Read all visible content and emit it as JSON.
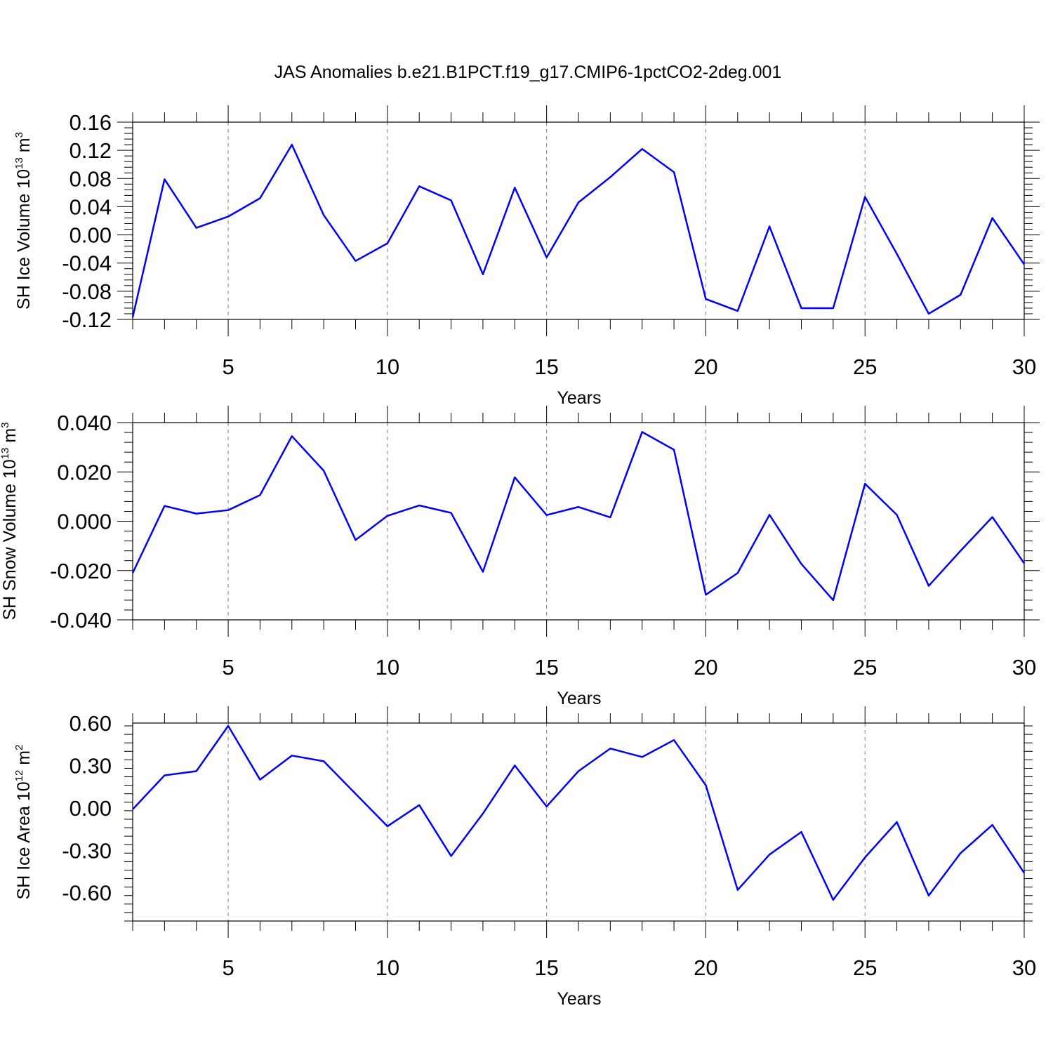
{
  "title": "JAS Anomalies b.e21.B1PCT.f19_g17.CMIP6-1pctCO2-2deg.001",
  "colors": {
    "line": "#0000ff",
    "axis": "#000000",
    "grid": "#808080"
  },
  "chart_data": [
    {
      "type": "line",
      "ylabel": {
        "text": "SH Ice Volume 10",
        "sup": "13",
        "unit": " m",
        "unit_sup": "3"
      },
      "xlabel": "Years",
      "xlim": [
        2,
        30
      ],
      "ylim": [
        -0.12,
        0.16
      ],
      "yticks": [
        -0.12,
        -0.08,
        -0.04,
        0.0,
        0.04,
        0.08,
        0.12,
        0.16
      ],
      "ytick_labels": [
        "-0.12",
        "-0.08",
        "-0.04",
        "0.00",
        "0.04",
        "0.08",
        "0.12",
        "0.16"
      ],
      "xticks": [
        5,
        10,
        15,
        20,
        25,
        30
      ],
      "xtick_labels": [
        "5",
        "10",
        "15",
        "20",
        "25",
        "30"
      ],
      "grid": "x-dashed",
      "x": [
        2,
        3,
        4,
        5,
        6,
        7,
        8,
        9,
        10,
        11,
        12,
        13,
        14,
        15,
        16,
        17,
        18,
        19,
        20,
        21,
        22,
        23,
        24,
        25,
        26,
        27,
        28,
        29,
        30
      ],
      "series": [
        {
          "values": [
            -0.117,
            0.079,
            0.01,
            0.026,
            0.052,
            0.128,
            0.028,
            -0.037,
            -0.012,
            0.069,
            0.049,
            -0.056,
            0.067,
            -0.032,
            0.046,
            0.082,
            0.122,
            0.089,
            -0.091,
            -0.108,
            0.012,
            -0.104,
            -0.104,
            0.054,
            -0.027,
            -0.112,
            -0.085,
            0.024,
            -0.042
          ]
        }
      ]
    },
    {
      "type": "line",
      "ylabel": {
        "text": "SH Snow Volume 10",
        "sup": "13",
        "unit": " m",
        "unit_sup": "3"
      },
      "xlabel": "Years",
      "xlim": [
        2,
        30
      ],
      "ylim": [
        -0.04,
        0.04
      ],
      "yticks": [
        -0.04,
        -0.02,
        0.0,
        0.02,
        0.04
      ],
      "ytick_labels": [
        "-0.040",
        "-0.020",
        "0.000",
        "0.020",
        "0.040"
      ],
      "xticks": [
        5,
        10,
        15,
        20,
        25,
        30
      ],
      "xtick_labels": [
        "5",
        "10",
        "15",
        "20",
        "25",
        "30"
      ],
      "grid": "x-dashed",
      "x": [
        2,
        3,
        4,
        5,
        6,
        7,
        8,
        9,
        10,
        11,
        12,
        13,
        14,
        15,
        16,
        17,
        18,
        19,
        20,
        21,
        22,
        23,
        24,
        25,
        26,
        27,
        28,
        29,
        30
      ],
      "series": [
        {
          "values": [
            -0.021,
            0.0062,
            0.0031,
            0.0045,
            0.0106,
            0.0345,
            0.0205,
            -0.0076,
            0.0022,
            0.0064,
            0.0034,
            -0.0205,
            0.0178,
            0.0025,
            0.0058,
            0.0016,
            0.0362,
            0.029,
            -0.0298,
            -0.021,
            0.0026,
            -0.0173,
            -0.032,
            0.0152,
            0.0026,
            -0.0262,
            -0.012,
            0.0017,
            -0.0171
          ]
        }
      ]
    },
    {
      "type": "line",
      "ylabel": {
        "text": "SH Ice Area 10",
        "sup": "12",
        "unit": " m",
        "unit_sup": "2"
      },
      "xlabel": "Years",
      "xlim": [
        2,
        30
      ],
      "ylim": [
        -0.8,
        0.6
      ],
      "yticks": [
        -0.6,
        -0.3,
        0.0,
        0.3,
        0.6
      ],
      "ytick_labels": [
        "-0.60",
        "-0.30",
        "0.00",
        "0.30",
        "0.60"
      ],
      "xticks": [
        5,
        10,
        15,
        20,
        25,
        30
      ],
      "xtick_labels": [
        "5",
        "10",
        "15",
        "20",
        "25",
        "30"
      ],
      "grid": "x-dashed",
      "x": [
        2,
        3,
        4,
        5,
        6,
        7,
        8,
        9,
        10,
        11,
        12,
        13,
        14,
        15,
        16,
        17,
        18,
        19,
        20,
        21,
        22,
        23,
        24,
        25,
        26,
        27,
        28,
        29,
        30
      ],
      "series": [
        {
          "values": [
            -0.01,
            0.23,
            0.26,
            0.58,
            0.2,
            0.37,
            0.33,
            0.1,
            -0.13,
            0.02,
            -0.34,
            -0.04,
            0.3,
            0.01,
            0.26,
            0.42,
            0.36,
            0.48,
            0.16,
            -0.58,
            -0.33,
            -0.17,
            -0.65,
            -0.35,
            -0.1,
            -0.62,
            -0.32,
            -0.12,
            -0.46
          ]
        }
      ]
    }
  ]
}
